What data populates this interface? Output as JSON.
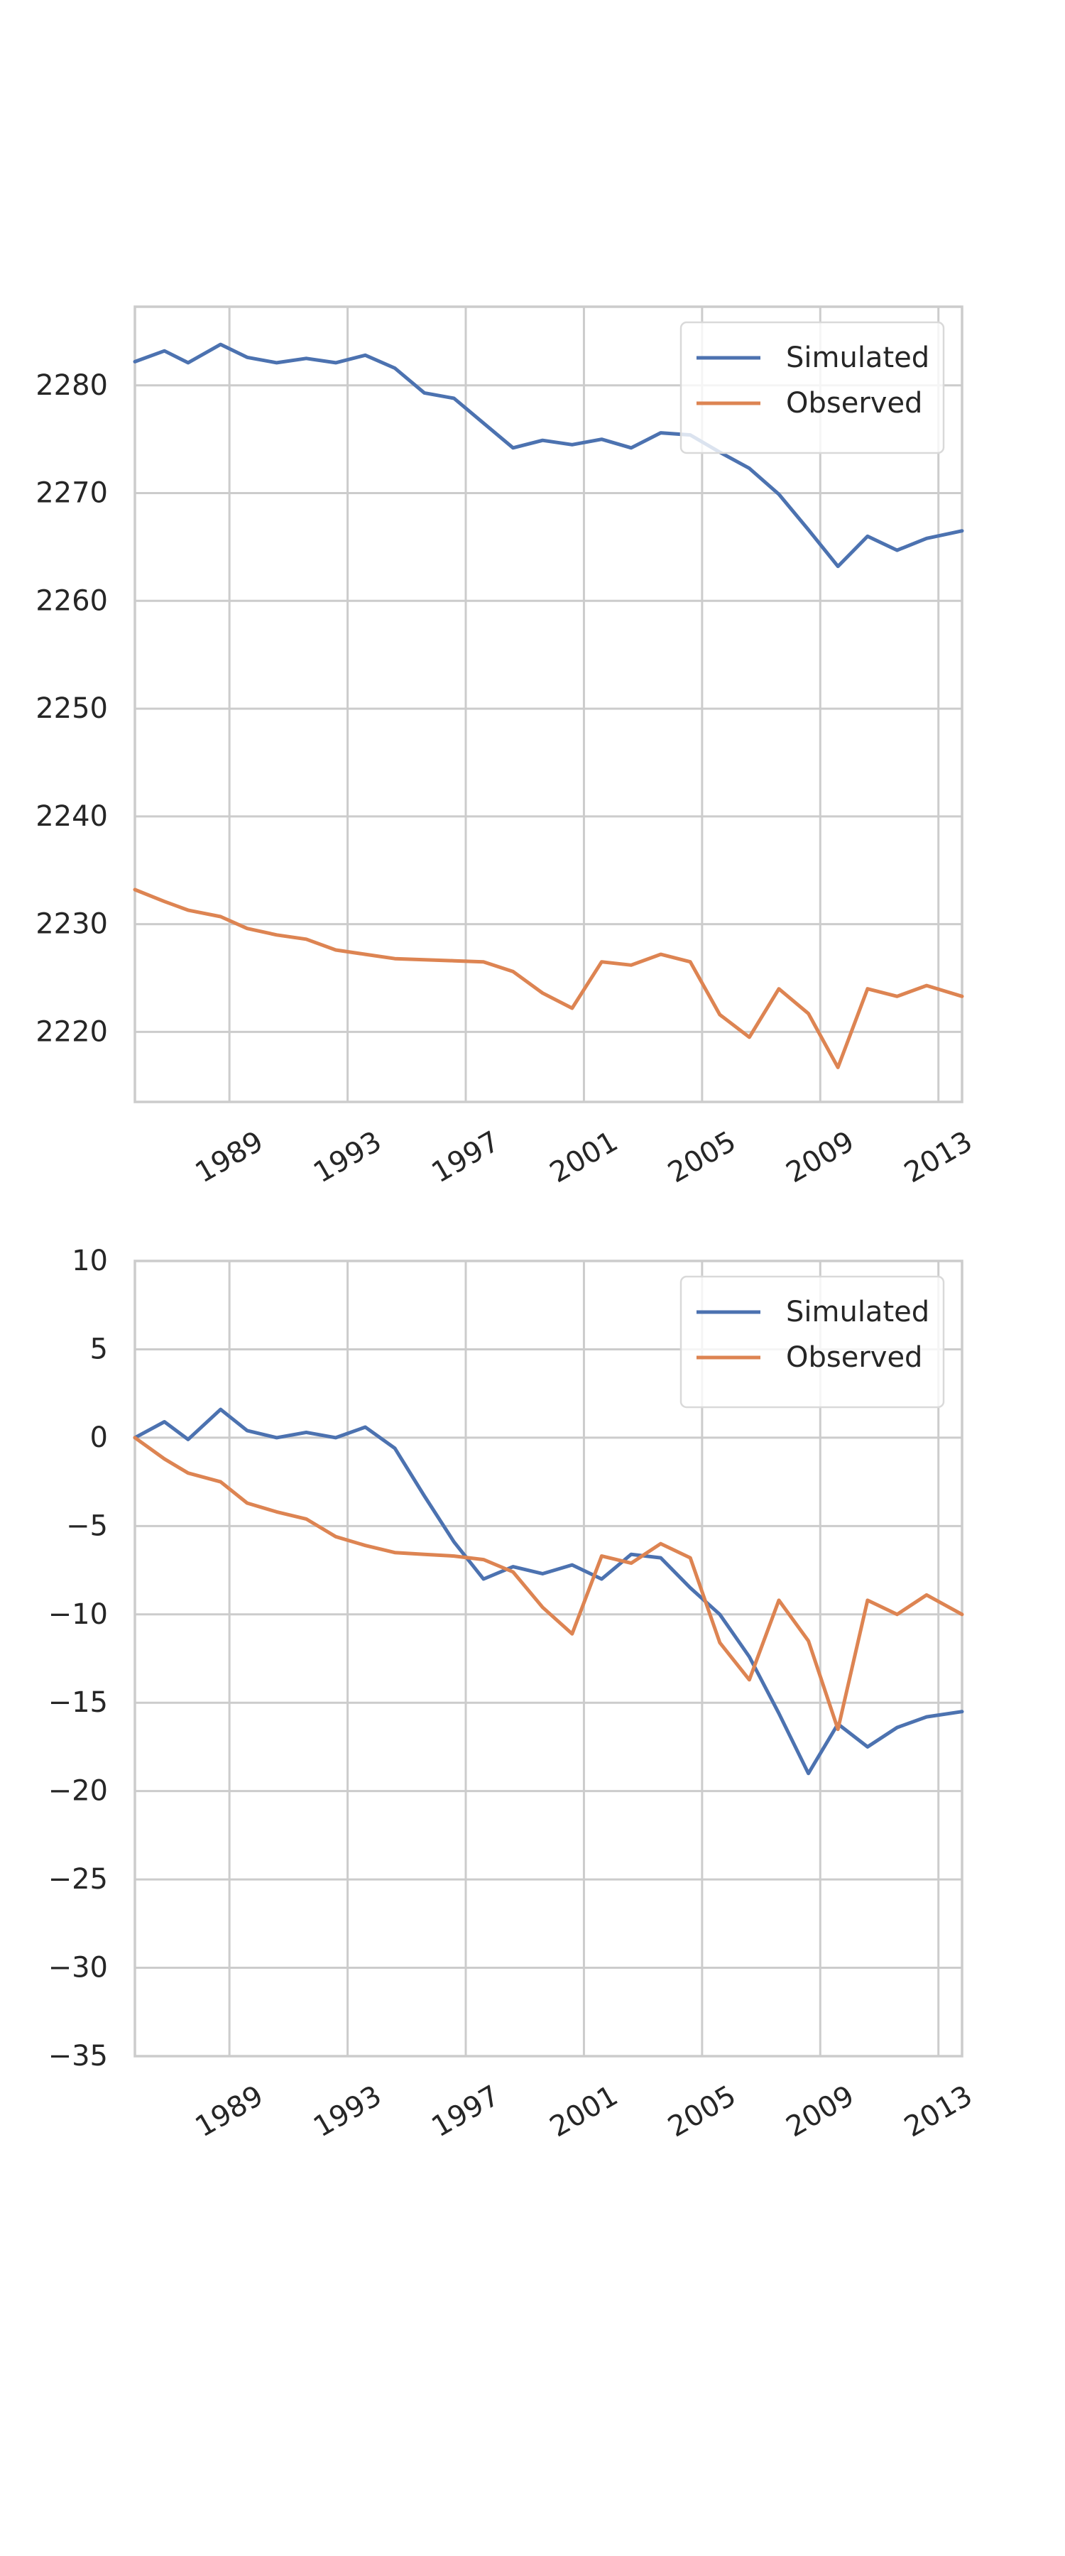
{
  "chart_data": [
    {
      "type": "line",
      "title": "",
      "xlabel": "",
      "ylabel": "",
      "grid": true,
      "legend_position": "top-right",
      "xlim": [
        1985.8,
        2013.8
      ],
      "ylim": [
        2213.5,
        2287.3
      ],
      "x_ticks": [
        1989,
        1993,
        1997,
        2001,
        2005,
        2009,
        2013
      ],
      "y_ticks": [
        2220,
        2230,
        2240,
        2250,
        2260,
        2270,
        2280
      ],
      "x": [
        1985.8,
        1986.8,
        1987.6,
        1988.7,
        1989.6,
        1990.6,
        1991.6,
        1992.6,
        1993.6,
        1994.6,
        1995.6,
        1996.6,
        1997.6,
        1998.6,
        1999.6,
        2000.6,
        2001.6,
        2002.6,
        2003.6,
        2004.6,
        2005.6,
        2006.6,
        2007.6,
        2008.6,
        2009.6,
        2010.6,
        2011.6,
        2012.6,
        2013.8
      ],
      "series": [
        {
          "name": "Simulated",
          "color": "#4c72b0",
          "values": [
            2282.2,
            2283.2,
            2282.1,
            2283.8,
            2282.6,
            2282.1,
            2282.5,
            2282.1,
            2282.8,
            2281.6,
            2279.3,
            2278.8,
            2276.5,
            2274.2,
            2274.9,
            2274.5,
            2275.0,
            2274.2,
            2275.6,
            2275.4,
            2273.8,
            2272.3,
            2269.9,
            2266.6,
            2263.2,
            2266.0,
            2264.7,
            2265.8,
            2266.5
          ]
        },
        {
          "name": "Observed",
          "color": "#dd8452",
          "values": [
            2233.2,
            2232.1,
            2231.3,
            2230.7,
            2229.6,
            2229.0,
            2228.6,
            2227.6,
            2227.2,
            2226.8,
            2226.7,
            2226.6,
            2226.5,
            2225.6,
            2223.6,
            2222.2,
            2226.5,
            2226.2,
            2227.2,
            2226.5,
            2221.6,
            2219.5,
            2224.0,
            2221.7,
            2216.7,
            2224.0,
            2223.3,
            2224.3,
            2223.3
          ]
        }
      ]
    },
    {
      "type": "line",
      "title": "",
      "xlabel": "",
      "ylabel": "",
      "grid": true,
      "legend_position": "top-right",
      "xlim": [
        1985.8,
        2013.8
      ],
      "ylim": [
        -35,
        10
      ],
      "x_ticks": [
        1989,
        1993,
        1997,
        2001,
        2005,
        2009,
        2013
      ],
      "y_ticks": [
        10,
        5,
        0,
        -5,
        -10,
        -15,
        -20,
        -25,
        -30,
        -35
      ],
      "x": [
        1985.8,
        1986.8,
        1987.6,
        1988.7,
        1989.6,
        1990.6,
        1991.6,
        1992.6,
        1993.6,
        1994.6,
        1995.6,
        1996.6,
        1997.6,
        1998.6,
        1999.6,
        2000.6,
        2001.6,
        2002.6,
        2003.6,
        2004.6,
        2005.6,
        2006.6,
        2007.6,
        2008.6,
        2009.6,
        2010.6,
        2011.6,
        2012.6,
        2013.8
      ],
      "series": [
        {
          "name": "Simulated",
          "color": "#4c72b0",
          "values": [
            0.0,
            0.9,
            -0.1,
            1.6,
            0.4,
            0.0,
            0.3,
            0.0,
            0.6,
            -0.6,
            -3.3,
            -5.9,
            -8.0,
            -7.3,
            -7.7,
            -7.2,
            -8.0,
            -6.6,
            -6.8,
            -8.5,
            -10.0,
            -12.4,
            -15.6,
            -19.0,
            -16.2,
            -17.5,
            -16.4,
            -15.8,
            -15.5
          ]
        },
        {
          "name": "Observed",
          "color": "#dd8452",
          "values": [
            0.0,
            -1.2,
            -2.0,
            -2.5,
            -3.7,
            -4.2,
            -4.6,
            -5.6,
            -6.1,
            -6.5,
            -6.6,
            -6.7,
            -6.9,
            -7.6,
            -9.6,
            -11.1,
            -6.7,
            -7.1,
            -6.0,
            -6.8,
            -11.6,
            -13.7,
            -9.2,
            -11.5,
            -16.5,
            -9.2,
            -10.0,
            -8.9,
            -10.0
          ]
        }
      ]
    }
  ]
}
